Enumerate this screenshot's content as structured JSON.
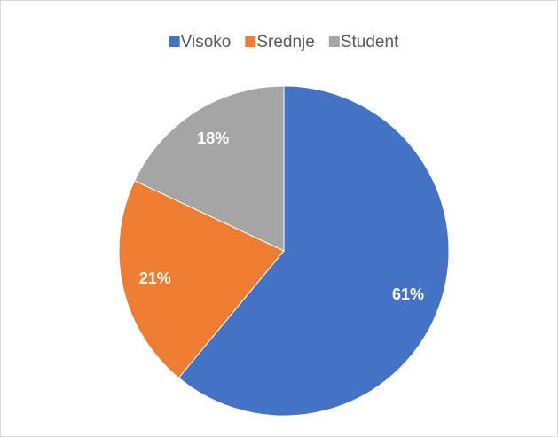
{
  "chart_data": {
    "type": "pie",
    "categories": [
      "Visoko",
      "Srednje",
      "Student"
    ],
    "values": [
      61,
      21,
      18
    ],
    "value_labels": [
      "61%",
      "21%",
      "18%"
    ],
    "colors": [
      "#4472c4",
      "#ed7d31",
      "#a5a5a5"
    ],
    "legend": "top"
  }
}
